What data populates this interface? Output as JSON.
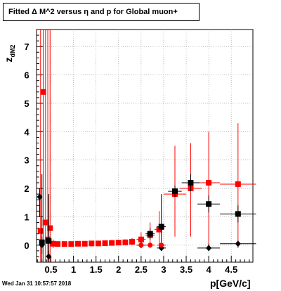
{
  "title": "Fitted Δ M^2 versus η and p for Global muon+",
  "timestamp": "Wed Jan 31 10:57:57 2018",
  "chart_data": {
    "type": "scatter",
    "title": "Fitted Δ M^2 versus η and p for Global muon+",
    "xlabel": "p[GeV/c]",
    "ylabel_main": "z",
    "ylabel_sub": "dM2",
    "xlim": [
      0.18,
      4.98
    ],
    "ylim": [
      -0.6,
      7.6
    ],
    "xticks": [
      0.5,
      1,
      1.5,
      2,
      2.5,
      3,
      3.5,
      4,
      4.5
    ],
    "xtick_labels": [
      "0.5",
      "1",
      "1.5",
      "2",
      "2.5",
      "3",
      "3.5",
      "4",
      "4.5"
    ],
    "yticks": [
      0,
      1,
      2,
      3,
      4,
      5,
      6,
      7
    ],
    "ytick_labels": [
      "0",
      "1",
      "2",
      "3",
      "4",
      "5",
      "6",
      "7"
    ],
    "series": [
      {
        "marker": "square",
        "color": "#ff0000",
        "points": [
          {
            "x": 0.27,
            "y": 0.5,
            "xerr": 0.03,
            "ylo": -0.6,
            "yhi": 7.6
          },
          {
            "x": 0.33,
            "y": 5.4,
            "xerr": 0.03,
            "ylo": -0.6,
            "yhi": 7.6
          },
          {
            "x": 0.38,
            "y": 0.8,
            "xerr": 0.02,
            "ylo": -0.6,
            "yhi": 7.6
          },
          {
            "x": 0.43,
            "y": 0.2,
            "xerr": 0.02,
            "ylo": -0.6,
            "yhi": 7.6
          },
          {
            "x": 0.48,
            "y": 0.6,
            "xerr": 0.02,
            "ylo": -0.6,
            "yhi": 7.6
          },
          {
            "x": 0.55,
            "y": 0.05,
            "xerr": 0.03,
            "ylo": -0.1,
            "yhi": 0.2
          },
          {
            "x": 0.65,
            "y": 0.04,
            "xerr": 0.05,
            "ylo": -0.05,
            "yhi": 0.12
          },
          {
            "x": 0.8,
            "y": 0.04,
            "xerr": 0.05,
            "ylo": -0.02,
            "yhi": 0.1
          },
          {
            "x": 0.95,
            "y": 0.04,
            "xerr": 0.05,
            "ylo": -0.02,
            "yhi": 0.1
          },
          {
            "x": 1.1,
            "y": 0.05,
            "xerr": 0.05,
            "ylo": -0.01,
            "yhi": 0.1
          },
          {
            "x": 1.25,
            "y": 0.05,
            "xerr": 0.05,
            "ylo": -0.01,
            "yhi": 0.11
          },
          {
            "x": 1.4,
            "y": 0.06,
            "xerr": 0.05,
            "ylo": 0.0,
            "yhi": 0.12
          },
          {
            "x": 1.55,
            "y": 0.06,
            "xerr": 0.05,
            "ylo": 0.0,
            "yhi": 0.13
          },
          {
            "x": 1.7,
            "y": 0.07,
            "xerr": 0.05,
            "ylo": 0.0,
            "yhi": 0.14
          },
          {
            "x": 1.85,
            "y": 0.08,
            "xerr": 0.05,
            "ylo": 0.0,
            "yhi": 0.16
          },
          {
            "x": 2.0,
            "y": 0.09,
            "xerr": 0.05,
            "ylo": 0.0,
            "yhi": 0.18
          },
          {
            "x": 2.15,
            "y": 0.1,
            "xerr": 0.05,
            "ylo": 0.0,
            "yhi": 0.2
          },
          {
            "x": 2.3,
            "y": 0.12,
            "xerr": 0.05,
            "ylo": 0.0,
            "yhi": 0.25
          },
          {
            "x": 2.5,
            "y": 0.2,
            "xerr": 0.1,
            "ylo": -0.05,
            "yhi": 0.45
          },
          {
            "x": 2.7,
            "y": 0.35,
            "xerr": 0.1,
            "ylo": -0.1,
            "yhi": 0.8
          },
          {
            "x": 2.9,
            "y": 0.55,
            "xerr": 0.1,
            "ylo": -0.1,
            "yhi": 1.2
          },
          {
            "x": 3.25,
            "y": 1.8,
            "xerr": 0.25,
            "ylo": 0.3,
            "yhi": 3.5
          },
          {
            "x": 3.6,
            "y": 2.0,
            "xerr": 0.25,
            "ylo": 0.3,
            "yhi": 3.6
          },
          {
            "x": 4.0,
            "y": 2.2,
            "xerr": 0.25,
            "ylo": 0.0,
            "yhi": 4.0
          },
          {
            "x": 4.65,
            "y": 2.15,
            "xerr": 0.4,
            "ylo": -0.1,
            "yhi": 4.3
          }
        ]
      },
      {
        "marker": "square",
        "color": "#000000",
        "points": [
          {
            "x": 0.3,
            "y": 0.1,
            "xerr": 0.05,
            "ylo": -0.6,
            "yhi": 2.5
          },
          {
            "x": 0.45,
            "y": 0.15,
            "xerr": 0.05,
            "ylo": -0.5,
            "yhi": 1.8
          },
          {
            "x": 2.7,
            "y": 0.4,
            "xerr": 0.1,
            "ylo": 0.2,
            "yhi": 0.6
          },
          {
            "x": 2.95,
            "y": 0.65,
            "xerr": 0.1,
            "ylo": 0.1,
            "yhi": 1.8
          },
          {
            "x": 3.25,
            "y": 1.9,
            "xerr": 0.15,
            "ylo": 1.7,
            "yhi": 2.1
          },
          {
            "x": 3.6,
            "y": 2.2,
            "xerr": 0.2,
            "ylo": 1.9,
            "yhi": 2.5
          },
          {
            "x": 4.0,
            "y": 1.45,
            "xerr": 0.25,
            "ylo": 1.15,
            "yhi": 1.75
          },
          {
            "x": 4.65,
            "y": 1.1,
            "xerr": 0.4,
            "ylo": 0.8,
            "yhi": 1.4
          }
        ]
      },
      {
        "marker": "diamond",
        "color": "#000000",
        "points": [
          {
            "x": 0.25,
            "y": 1.7,
            "xerr": 0.03,
            "ylo": 1.0,
            "yhi": 2.0
          },
          {
            "x": 0.3,
            "y": 0.0,
            "xerr": 0.03,
            "ylo": -0.3,
            "yhi": 0.3
          },
          {
            "x": 0.45,
            "y": -0.4,
            "xerr": 0.05,
            "ylo": -0.6,
            "yhi": -0.2
          },
          {
            "x": 2.5,
            "y": 0.0,
            "xerr": 0.1,
            "ylo": -0.05,
            "yhi": 0.05
          },
          {
            "x": 2.95,
            "y": -0.1,
            "xerr": 0.1,
            "ylo": -0.2,
            "yhi": 0.1
          },
          {
            "x": 4.0,
            "y": -0.1,
            "xerr": 0.25,
            "ylo": -0.2,
            "yhi": 0.05
          },
          {
            "x": 4.65,
            "y": 0.05,
            "xerr": 0.4,
            "ylo": -0.05,
            "yhi": 0.15
          }
        ]
      },
      {
        "marker": "circle",
        "color": "#ff0000",
        "points": [
          {
            "x": 2.5,
            "y": 0.0,
            "xerr": 0.1,
            "ylo": -0.05,
            "yhi": 0.05
          },
          {
            "x": 2.7,
            "y": 0.0,
            "xerr": 0.1,
            "ylo": -0.05,
            "yhi": 0.05
          },
          {
            "x": 2.95,
            "y": 0.0,
            "xerr": 0.1,
            "ylo": -0.05,
            "yhi": 0.05
          }
        ]
      }
    ]
  }
}
